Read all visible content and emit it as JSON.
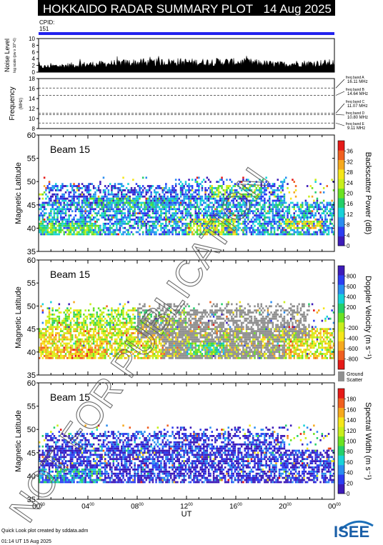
{
  "header": {
    "title": "HOKKAIDO RADAR SUMMARY PLOT",
    "date": "14 Aug 2025",
    "cpid_label": "CPID:",
    "cpid_value": "151"
  },
  "watermark": "NOT FOR PUBLICATION",
  "footer": {
    "credit": "Quick Look plot created by sddata.adm",
    "created": "01:14 UT 15 Aug 2025",
    "logo_text": "ISEE"
  },
  "colors": {
    "header_bg": "#000000",
    "header_text": "#ffffff",
    "cpid_bar": "#2222ee",
    "noise_fill": "#000000",
    "ground_scatter": "#909090"
  },
  "chart_data": [
    {
      "id": "noise",
      "type": "area",
      "ylabel": "Noise Level",
      "ylabel_sub": "log scale (pw x 10^-6)",
      "ylim": [
        0,
        10
      ],
      "yticks": [
        "0",
        "2",
        "4",
        "6",
        "8",
        "10"
      ],
      "x_hours": [
        0,
        1,
        2,
        3,
        4,
        5,
        6,
        7,
        8,
        9,
        10,
        11,
        12,
        13,
        14,
        15,
        16,
        17,
        18,
        19,
        20,
        21,
        22,
        23,
        24
      ],
      "y": [
        1.6,
        1.9,
        2.1,
        2.3,
        2.5,
        2.6,
        2.8,
        3.0,
        3.1,
        3.0,
        3.2,
        3.3,
        3.2,
        3.1,
        3.3,
        3.3,
        3.2,
        3.2,
        2.9,
        2.6,
        2.5,
        2.8,
        2.8,
        2.9,
        3.0
      ]
    },
    {
      "id": "frequency",
      "type": "line",
      "ylabel": "Frequency",
      "ylabel_sub": "(MHz)",
      "ylim": [
        8,
        18
      ],
      "yticks": [
        "8",
        "10",
        "12",
        "14",
        "16",
        "18"
      ],
      "bands": [
        {
          "label": "freq band A",
          "value_label": "16.11 MHz",
          "mhz": 16.11
        },
        {
          "label": "freq band B",
          "value_label": "14.64 MHz",
          "mhz": 14.64
        },
        {
          "label": "freq band C",
          "value_label": "11.07 MHz",
          "mhz": 11.07
        },
        {
          "label": "freq band D",
          "value_label": "10.80 MHz",
          "mhz": 10.8
        },
        {
          "label": "freq band E",
          "value_label": "9.11 MHz",
          "mhz": 9.11
        }
      ]
    },
    {
      "id": "power",
      "type": "heatmap",
      "beam_label": "Beam 15",
      "ylabel": "Magnetic Latitude",
      "ylim": [
        35,
        60
      ],
      "yticks": [
        "35",
        "40",
        "45",
        "50",
        "55",
        "60"
      ],
      "colorbar_label": "Backscatter Power (dB)",
      "colorbar_ticks": [
        "0",
        "4",
        "8",
        "12",
        "16",
        "20",
        "24",
        "28",
        "32",
        "36"
      ],
      "colorbar_range": [
        0,
        40
      ],
      "palette": [
        "#3c1bb8",
        "#2c3df2",
        "#2a8df0",
        "#18d2d8",
        "#25cf6a",
        "#6be222",
        "#c8ee1c",
        "#f5e61a",
        "#f6a91e",
        "#f06020",
        "#e51a18"
      ],
      "coverage_lat": [
        38.5,
        51.0
      ],
      "regions": [
        {
          "t0": 0.0,
          "t1": 24.0,
          "lat0": 38.5,
          "lat1": 45.5,
          "value": 10
        },
        {
          "t0": 0.5,
          "t1": 12.0,
          "lat0": 45.0,
          "lat1": 49.5,
          "value": 6
        },
        {
          "t0": 3.5,
          "t1": 11.0,
          "lat0": 44.0,
          "lat1": 46.5,
          "value": 14
        },
        {
          "t0": 11.0,
          "t1": 20.0,
          "lat0": 45.5,
          "lat1": 50.5,
          "value": 8
        },
        {
          "t0": 14.0,
          "t1": 18.0,
          "lat0": 46.5,
          "lat1": 49.0,
          "value": 20
        },
        {
          "t0": 12.0,
          "t1": 16.0,
          "lat0": 38.5,
          "lat1": 42.0,
          "value": 24
        },
        {
          "t0": 20.0,
          "t1": 23.0,
          "lat0": 39.5,
          "lat1": 41.5,
          "value": 26
        },
        {
          "t0": 0.0,
          "t1": 5.0,
          "lat0": 38.5,
          "lat1": 41.0,
          "value": 18
        }
      ]
    },
    {
      "id": "velocity",
      "type": "heatmap",
      "beam_label": "Beam 15",
      "ylabel": "Magnetic Latitude",
      "ylim": [
        35,
        60
      ],
      "yticks": [
        "35",
        "40",
        "45",
        "50",
        "55",
        "60"
      ],
      "colorbar_label": "Doppler Velocity (m s⁻¹)",
      "colorbar_ticks": [
        "800",
        "600",
        "400",
        "200",
        "0",
        "-200",
        "-400",
        "-600",
        "-800"
      ],
      "colorbar_range": [
        -1000,
        1000
      ],
      "palette": [
        "#e51a18",
        "#f06020",
        "#f6a91e",
        "#f5e61a",
        "#c8ee1c",
        "#6be222",
        "#25cf6a",
        "#18d2d8",
        "#2a8df0",
        "#2c3df2",
        "#3c1bb8"
      ],
      "ground_label": "Ground",
      "ground_label2": "Scatter",
      "coverage_lat": [
        38.5,
        51.0
      ],
      "regions": [
        {
          "t0": 0.0,
          "t1": 24.0,
          "lat0": 38.5,
          "lat1": 45.0,
          "value": -300
        },
        {
          "t0": 0.5,
          "t1": 12.0,
          "lat0": 45.0,
          "lat1": 49.5,
          "value": -100
        },
        {
          "t0": 8.0,
          "t1": 22.0,
          "lat0": 43.0,
          "lat1": 50.5,
          "value": "GS"
        },
        {
          "t0": 10.0,
          "t1": 20.0,
          "lat0": 38.5,
          "lat1": 43.0,
          "value": "GS"
        },
        {
          "t0": 12.0,
          "t1": 15.0,
          "lat0": 39.0,
          "lat1": 42.0,
          "value": 150
        },
        {
          "t0": 0.0,
          "t1": 5.0,
          "lat0": 38.5,
          "lat1": 41.0,
          "value": -500
        }
      ]
    },
    {
      "id": "width",
      "type": "heatmap",
      "beam_label": "Beam 15",
      "ylabel": "Magnetic Latitude",
      "ylim": [
        35,
        60
      ],
      "yticks": [
        "35",
        "40",
        "45",
        "50",
        "55",
        "60"
      ],
      "colorbar_label": "Spectral Width (m s⁻¹)",
      "colorbar_ticks": [
        "0",
        "20",
        "40",
        "60",
        "80",
        "100",
        "120",
        "140",
        "160",
        "180"
      ],
      "colorbar_range": [
        0,
        200
      ],
      "palette": [
        "#3c1bb8",
        "#2c3df2",
        "#2a8df0",
        "#18d2d8",
        "#25cf6a",
        "#6be222",
        "#c8ee1c",
        "#f5e61a",
        "#f6a91e",
        "#f06020",
        "#e51a18"
      ],
      "coverage_lat": [
        38.5,
        51.0
      ],
      "regions": [
        {
          "t0": 0.0,
          "t1": 24.0,
          "lat0": 38.5,
          "lat1": 45.5,
          "value": 15
        },
        {
          "t0": 0.5,
          "t1": 12.0,
          "lat0": 45.0,
          "lat1": 49.5,
          "value": 20
        },
        {
          "t0": 11.0,
          "t1": 20.0,
          "lat0": 45.5,
          "lat1": 50.5,
          "value": 15
        },
        {
          "t0": 0.0,
          "t1": 5.0,
          "lat0": 38.5,
          "lat1": 41.5,
          "value": 60
        }
      ]
    }
  ],
  "x_axis": {
    "label": "UT",
    "ticks": [
      {
        "h": 0,
        "main": "00",
        "sup": "00"
      },
      {
        "h": 4,
        "main": "04",
        "sup": "00"
      },
      {
        "h": 8,
        "main": "08",
        "sup": "00"
      },
      {
        "h": 12,
        "main": "12",
        "sup": "00"
      },
      {
        "h": 16,
        "main": "16",
        "sup": "00"
      },
      {
        "h": 20,
        "main": "20",
        "sup": "00"
      },
      {
        "h": 24,
        "main": "00",
        "sup": "00"
      }
    ]
  }
}
